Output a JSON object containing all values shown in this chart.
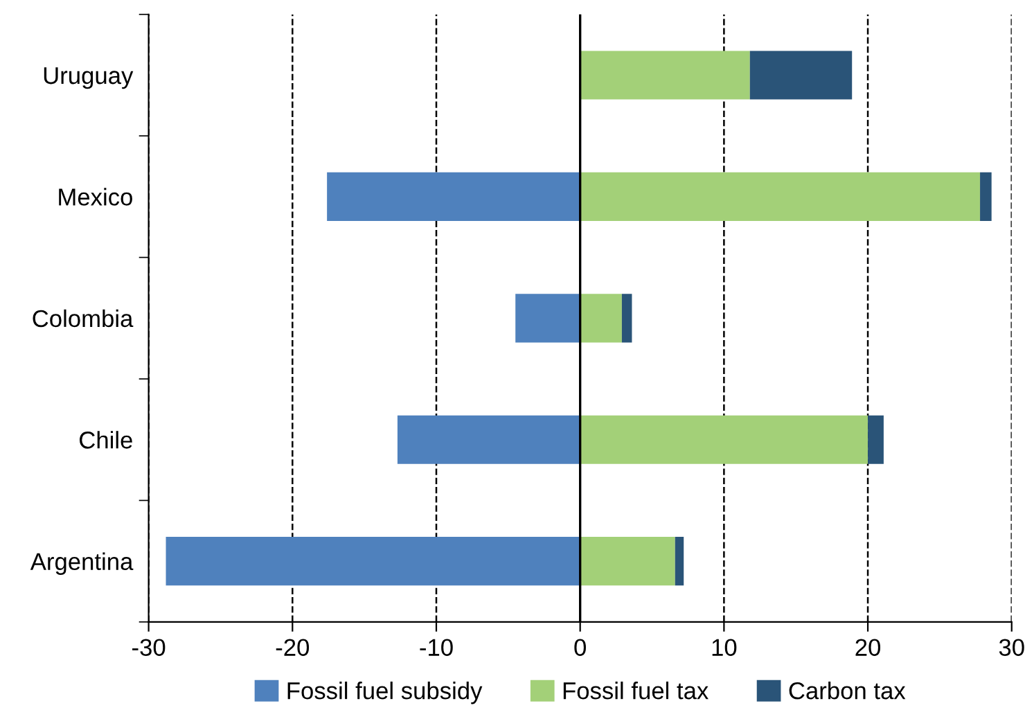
{
  "chart_data": {
    "type": "bar",
    "orientation": "horizontal",
    "stacked": true,
    "categories": [
      "Uruguay",
      "Mexico",
      "Colombia",
      "Chile",
      "Argentina"
    ],
    "series": [
      {
        "name": "Fossil fuel subsidy",
        "color": "#4f81bd",
        "values": [
          null,
          -17.6,
          -4.5,
          -12.7,
          -28.8
        ]
      },
      {
        "name": "Fossil fuel tax",
        "color": "#a3d078",
        "values": [
          11.8,
          27.8,
          2.9,
          20.0,
          6.6
        ]
      },
      {
        "name": "Carbon tax",
        "color": "#2a5478",
        "values": [
          7.1,
          0.8,
          0.7,
          1.1,
          0.6
        ]
      }
    ],
    "xlim": [
      -30,
      30
    ],
    "xticks": [
      -30,
      -20,
      -10,
      0,
      10,
      20,
      30
    ],
    "grid": "x",
    "line_style": "dashed",
    "legend": "bottom",
    "ref_lines": [
      {
        "axis": "x",
        "value": 0,
        "color": "#000000"
      }
    ]
  }
}
